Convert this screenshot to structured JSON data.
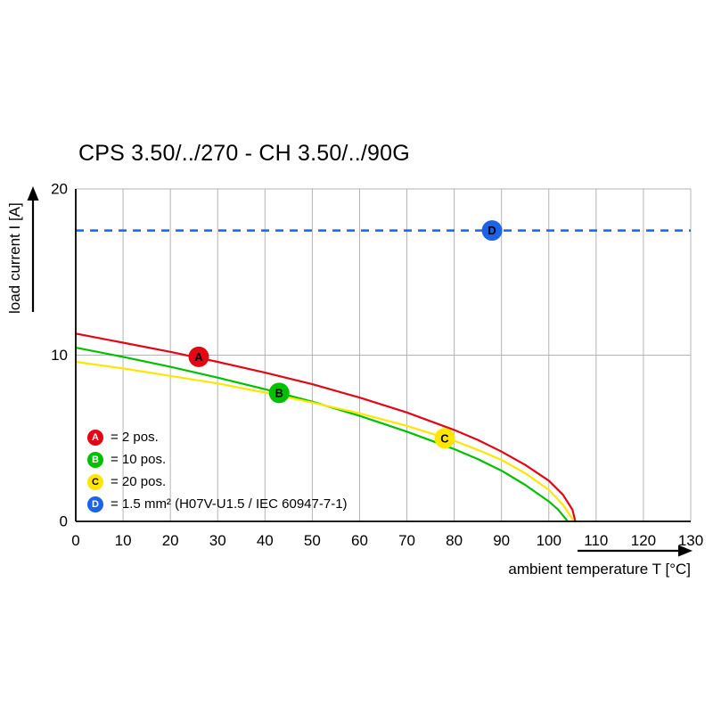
{
  "chart_data": {
    "type": "line",
    "title": "CPS 3.50/../270 - CH 3.50/../90G",
    "xlabel": "ambient temperature T [°C]",
    "ylabel": "load current I [A]",
    "xlim": [
      0,
      130
    ],
    "ylim": [
      0,
      20
    ],
    "x_ticks": [
      0,
      10,
      20,
      30,
      40,
      50,
      60,
      70,
      80,
      90,
      100,
      110,
      120,
      130
    ],
    "y_ticks": [
      0,
      10,
      20
    ],
    "grid": true,
    "grid_color": "#b4b4b4",
    "axis_color": "#000000",
    "series": [
      {
        "name": "A",
        "label": "2 pos.",
        "color": "#e30613",
        "points": [
          [
            0,
            11.3
          ],
          [
            10,
            10.75
          ],
          [
            20,
            10.2
          ],
          [
            30,
            9.6
          ],
          [
            40,
            8.95
          ],
          [
            50,
            8.25
          ],
          [
            60,
            7.45
          ],
          [
            70,
            6.55
          ],
          [
            80,
            5.5
          ],
          [
            85,
            4.9
          ],
          [
            90,
            4.2
          ],
          [
            95,
            3.4
          ],
          [
            100,
            2.45
          ],
          [
            103,
            1.6
          ],
          [
            105,
            0.7
          ],
          [
            105.6,
            0
          ]
        ]
      },
      {
        "name": "B",
        "label": "10 pos.",
        "color": "#00c000",
        "points": [
          [
            0,
            10.45
          ],
          [
            10,
            9.9
          ],
          [
            20,
            9.3
          ],
          [
            30,
            8.65
          ],
          [
            40,
            7.95
          ],
          [
            50,
            7.2
          ],
          [
            60,
            6.35
          ],
          [
            70,
            5.4
          ],
          [
            80,
            4.35
          ],
          [
            85,
            3.75
          ],
          [
            90,
            3.05
          ],
          [
            95,
            2.2
          ],
          [
            100,
            1.2
          ],
          [
            102,
            0.7
          ],
          [
            104,
            0
          ]
        ]
      },
      {
        "name": "C",
        "label": "20 pos.",
        "color": "#ffe600",
        "points": [
          [
            0,
            9.6
          ],
          [
            10,
            9.2
          ],
          [
            20,
            8.75
          ],
          [
            30,
            8.3
          ],
          [
            40,
            7.75
          ],
          [
            50,
            7.15
          ],
          [
            60,
            6.5
          ],
          [
            70,
            5.75
          ],
          [
            80,
            4.85
          ],
          [
            85,
            4.3
          ],
          [
            90,
            3.7
          ],
          [
            95,
            2.9
          ],
          [
            100,
            1.9
          ],
          [
            103,
            1.0
          ],
          [
            105.3,
            0
          ]
        ]
      }
    ],
    "reference_line": {
      "name": "D",
      "value": 17.5,
      "style": "dashed",
      "color": "#1c63e7"
    },
    "markers": [
      {
        "letter": "A",
        "x": 26,
        "y": 9.9,
        "color": "#e30613",
        "text_color": "#ffffff"
      },
      {
        "letter": "B",
        "x": 43,
        "y": 7.73,
        "color": "#00c000",
        "text_color": "#ffffff"
      },
      {
        "letter": "C",
        "x": 78,
        "y": 5.0,
        "color": "#ffe600",
        "text_color": "#000000"
      },
      {
        "letter": "D",
        "x": 88,
        "y": 17.5,
        "color": "#1c63e7",
        "text_color": "#ffffff"
      }
    ],
    "legend": {
      "position": "inside-lower-left",
      "items": [
        {
          "letter": "A",
          "label": "= 2 pos.",
          "color": "#e30613",
          "text_color": "#ffffff"
        },
        {
          "letter": "B",
          "label": "= 10 pos.",
          "color": "#00c000",
          "text_color": "#ffffff"
        },
        {
          "letter": "C",
          "label": "= 20 pos.",
          "color": "#ffe600",
          "text_color": "#000000"
        },
        {
          "letter": "D",
          "label": "= 1.5 mm² (H07V-U1.5 / IEC 60947-7-1)",
          "color": "#1c63e7",
          "text_color": "#ffffff"
        }
      ]
    }
  }
}
